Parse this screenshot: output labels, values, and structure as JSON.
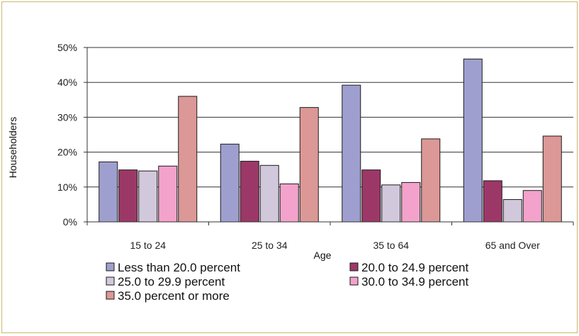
{
  "chart_data": {
    "type": "bar",
    "title": "",
    "xlabel": "Age",
    "ylabel": "Householders",
    "ylim": [
      0,
      50
    ],
    "yticks": [
      "0%",
      "10%",
      "20%",
      "30%",
      "40%",
      "50%"
    ],
    "categories": [
      "15 to 24",
      "25 to 34",
      "35 to 64",
      "65 and Over"
    ],
    "grid": true,
    "legend_position": "bottom",
    "series": [
      {
        "name": "Less than 20.0 percent",
        "color": "#9f9fcf",
        "values": [
          17.2,
          22.3,
          39.2,
          46.7
        ]
      },
      {
        "name": "20.0 to 24.9 percent",
        "color": "#9c3868",
        "values": [
          14.9,
          17.4,
          14.9,
          11.8
        ]
      },
      {
        "name": "25.0 to 29.9 percent",
        "color": "#d2c8dc",
        "values": [
          14.6,
          16.2,
          10.6,
          6.4
        ]
      },
      {
        "name": "30.0 to 34.9 percent",
        "color": "#f3a3cb",
        "values": [
          16.0,
          10.9,
          11.3,
          9.0
        ]
      },
      {
        "name": "35.0 percent or more",
        "color": "#dc9896",
        "values": [
          36.0,
          32.8,
          23.8,
          24.6
        ]
      }
    ]
  }
}
